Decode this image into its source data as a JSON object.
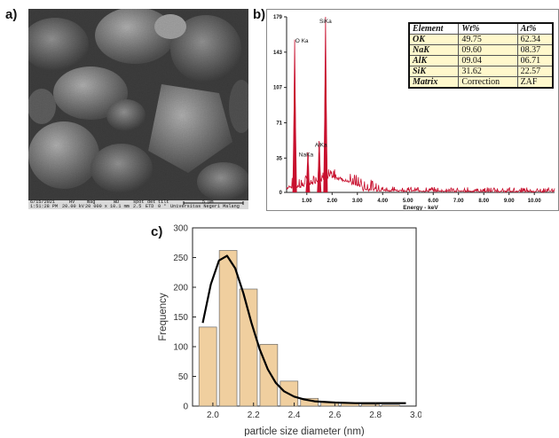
{
  "panel_labels": {
    "a": "a)",
    "b": "b)",
    "c": "c)"
  },
  "sem_info": {
    "row1": [
      "6/15/2021",
      "HV",
      "mag",
      "WD",
      "spot",
      "det",
      "tilt",
      "5 μm"
    ],
    "row2": [
      "1:51:28 PM",
      "20.00 kV",
      "20 000 x",
      "10.1 mm",
      "2.5",
      "ETD",
      "0 °",
      "Universitas Negeri Malang"
    ]
  },
  "colors": {
    "spectrum": "#c8102e",
    "bar_fill": "#f0cf9f",
    "bar_stroke": "#6b6b6b",
    "curve": "#000000",
    "table_bg": "#fff8cc"
  },
  "eds_table": {
    "headers": [
      "Element",
      "Wt%",
      "At%"
    ],
    "rows": [
      [
        "OK",
        "49.75",
        "62.34"
      ],
      [
        "NaK",
        "09.60",
        "08.37"
      ],
      [
        "AlK",
        "09.04",
        "06.71"
      ],
      [
        "SiK",
        "31.62",
        "22.57"
      ],
      [
        "Matrix",
        "Correction",
        "ZAF"
      ]
    ]
  },
  "chart_data": [
    {
      "type": "line",
      "title": "",
      "xlabel": "Energy - keV",
      "ylabel": "",
      "xlim": [
        0.2,
        10.8
      ],
      "ylim": [
        0,
        179
      ],
      "xticks": [
        "1.00",
        "2.00",
        "3.00",
        "4.00",
        "5.00",
        "6.00",
        "7.00",
        "8.00",
        "9.00",
        "10.00"
      ],
      "yticks": [
        "0",
        "35",
        "71",
        "107",
        "143",
        "179"
      ],
      "peaks": [
        {
          "label": "O Ka",
          "x": 0.52,
          "y": 150
        },
        {
          "label": "NaKa",
          "x": 1.04,
          "y": 34
        },
        {
          "label": "AlKa",
          "x": 1.49,
          "y": 44
        },
        {
          "label": "SiKa",
          "x": 1.74,
          "y": 170
        }
      ]
    },
    {
      "type": "bar",
      "title": "",
      "xlabel": "particle size diameter (nm)",
      "ylabel": "Frequency",
      "xlim": [
        1.9,
        3.0
      ],
      "ylim": [
        0,
        300
      ],
      "xticks": [
        "2.0",
        "2.2",
        "2.4",
        "2.6",
        "2.8",
        "3.0"
      ],
      "yticks": [
        "0",
        "50",
        "100",
        "150",
        "200",
        "250",
        "300"
      ],
      "bin_width": 0.1,
      "bin_centers": [
        1.975,
        2.075,
        2.175,
        2.275,
        2.375,
        2.475,
        2.575,
        2.675,
        2.775,
        2.875
      ],
      "values": [
        133,
        262,
        197,
        104,
        42,
        13,
        7,
        5,
        3,
        2
      ],
      "fit_curve": {
        "x": [
          1.95,
          1.99,
          2.03,
          2.07,
          2.11,
          2.15,
          2.19,
          2.23,
          2.27,
          2.31,
          2.35,
          2.4,
          2.45,
          2.5,
          2.6,
          2.7,
          2.8,
          2.95
        ],
        "y": [
          140,
          205,
          245,
          253,
          232,
          190,
          140,
          96,
          62,
          39,
          25,
          16,
          11,
          8,
          6,
          5,
          5,
          5
        ]
      }
    }
  ]
}
